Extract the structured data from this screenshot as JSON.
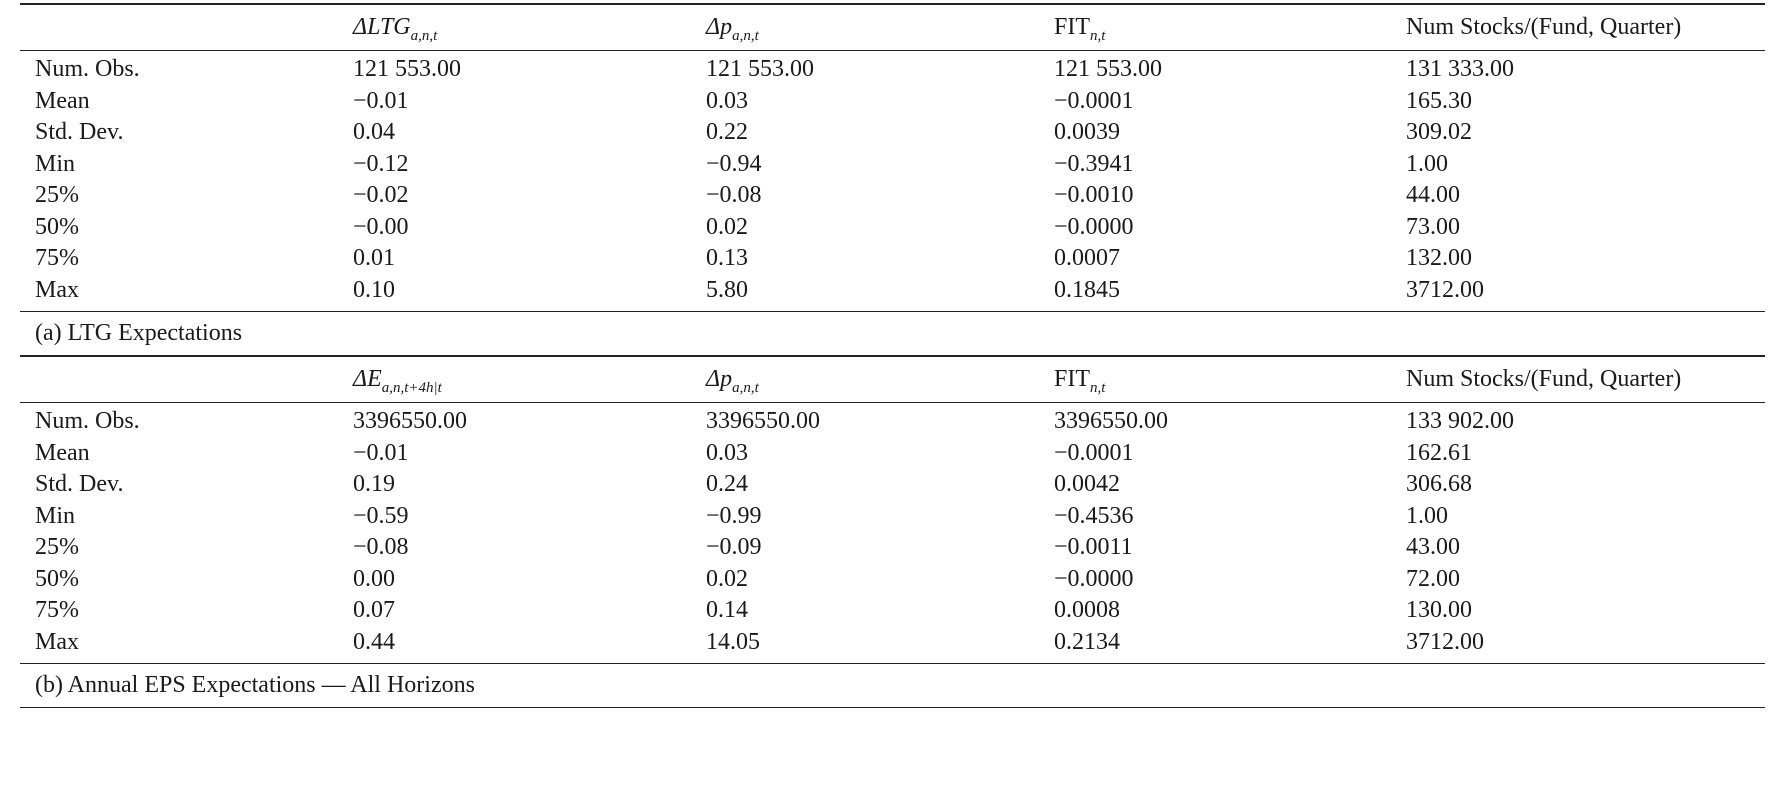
{
  "panels": [
    {
      "caption": "(a) LTG Expectations",
      "headers": [
        {
          "symbol": "ΔLTG",
          "sub": "a,n,t"
        },
        {
          "symbol": "Δp",
          "sub": "a,n,t"
        },
        {
          "symbol": "FIT",
          "sub": "n,t"
        },
        {
          "symbol": "Num Stocks/(Fund, Quarter)",
          "sub": ""
        }
      ],
      "rows": [
        {
          "label": "Num. Obs.",
          "values": [
            "121 553.00",
            "121 553.00",
            "121 553.00",
            "131 333.00"
          ]
        },
        {
          "label": "Mean",
          "values": [
            "−0.01",
            "0.03",
            "−0.0001",
            "165.30"
          ]
        },
        {
          "label": "Std. Dev.",
          "values": [
            "0.04",
            "0.22",
            "0.0039",
            "309.02"
          ]
        },
        {
          "label": "Min",
          "values": [
            "−0.12",
            "−0.94",
            "−0.3941",
            "1.00"
          ]
        },
        {
          "label": "25%",
          "values": [
            "−0.02",
            "−0.08",
            "−0.0010",
            "44.00"
          ]
        },
        {
          "label": "50%",
          "values": [
            "−0.00",
            "0.02",
            "−0.0000",
            "73.00"
          ]
        },
        {
          "label": "75%",
          "values": [
            "0.01",
            "0.13",
            "0.0007",
            "132.00"
          ]
        },
        {
          "label": "Max",
          "values": [
            "0.10",
            "5.80",
            "0.1845",
            "3712.00"
          ]
        }
      ]
    },
    {
      "caption": "(b) Annual EPS Expectations — All Horizons",
      "headers": [
        {
          "symbol": "ΔE",
          "sub": "a,n,t+4h|t"
        },
        {
          "symbol": "Δp",
          "sub": "a,n,t"
        },
        {
          "symbol": "FIT",
          "sub": "n,t"
        },
        {
          "symbol": "Num Stocks/(Fund, Quarter)",
          "sub": ""
        }
      ],
      "rows": [
        {
          "label": "Num. Obs.",
          "values": [
            "3396550.00",
            "3396550.00",
            "3396550.00",
            "133 902.00"
          ]
        },
        {
          "label": "Mean",
          "values": [
            "−0.01",
            "0.03",
            "−0.0001",
            "162.61"
          ]
        },
        {
          "label": "Std. Dev.",
          "values": [
            "0.19",
            "0.24",
            "0.0042",
            "306.68"
          ]
        },
        {
          "label": "Min",
          "values": [
            "−0.59",
            "−0.99",
            "−0.4536",
            "1.00"
          ]
        },
        {
          "label": "25%",
          "values": [
            "−0.08",
            "−0.09",
            "−0.0011",
            "43.00"
          ]
        },
        {
          "label": "50%",
          "values": [
            "0.00",
            "0.02",
            "−0.0000",
            "72.00"
          ]
        },
        {
          "label": "75%",
          "values": [
            "0.07",
            "0.14",
            "0.0008",
            "130.00"
          ]
        },
        {
          "label": "Max",
          "values": [
            "0.44",
            "14.05",
            "0.2134",
            "3712.00"
          ]
        }
      ]
    }
  ]
}
